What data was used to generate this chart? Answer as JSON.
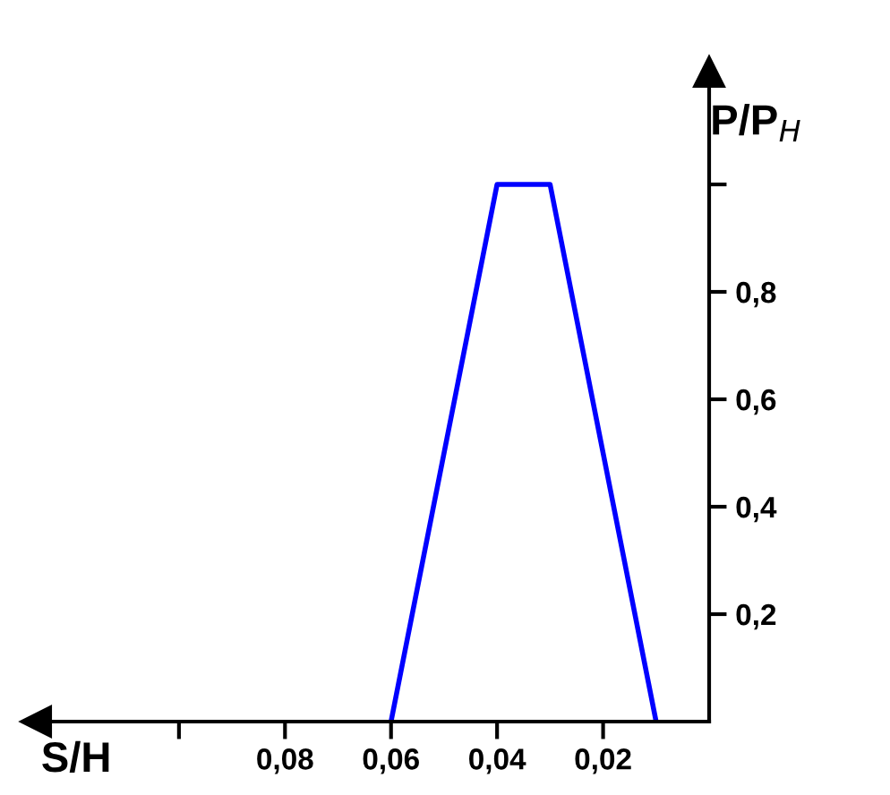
{
  "chart_data": {
    "type": "line",
    "xlabel": "S/H",
    "ylabel": "P/P$_{H}$",
    "x": [
      0.06,
      0.04,
      0.03,
      0.01
    ],
    "series": [
      {
        "color": "#0000ff",
        "values": [
          0,
          1.0,
          1.0,
          0
        ]
      }
    ],
    "xlim": [
      0.127,
      0
    ],
    "ylim": [
      0,
      1.21
    ],
    "xticks": [
      {
        "value": 0.1,
        "label": null
      },
      {
        "value": 0.08,
        "label": "0,08"
      },
      {
        "value": 0.06,
        "label": "0,06"
      },
      {
        "value": 0.04,
        "label": "0,04"
      },
      {
        "value": 0.02,
        "label": "0,02"
      }
    ],
    "yticks": [
      {
        "value": 0.2,
        "label": "0,2"
      },
      {
        "value": 0.4,
        "label": "0,4"
      },
      {
        "value": 0.6,
        "label": "0,6"
      },
      {
        "value": 0.8,
        "label": "0,8"
      },
      {
        "value": 1.0,
        "label": null
      }
    ],
    "grid": false,
    "legend": false,
    "marker": "none",
    "line_style": "solid"
  }
}
